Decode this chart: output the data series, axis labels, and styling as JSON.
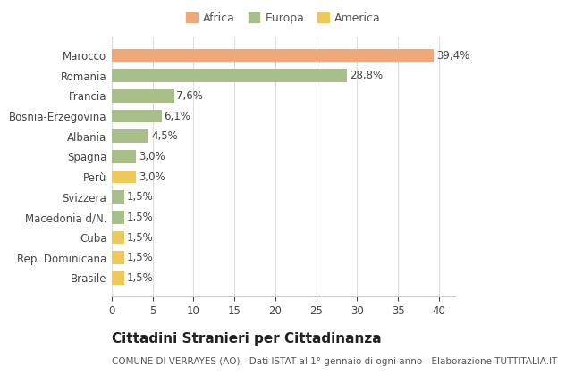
{
  "categories": [
    "Brasile",
    "Rep. Dominicana",
    "Cuba",
    "Macedonia d/N.",
    "Svizzera",
    "Perù",
    "Spagna",
    "Albania",
    "Bosnia-Erzegovina",
    "Francia",
    "Romania",
    "Marocco"
  ],
  "values": [
    1.5,
    1.5,
    1.5,
    1.5,
    1.5,
    3.0,
    3.0,
    4.5,
    6.1,
    7.6,
    28.8,
    39.4
  ],
  "labels": [
    "1,5%",
    "1,5%",
    "1,5%",
    "1,5%",
    "1,5%",
    "3,0%",
    "3,0%",
    "4,5%",
    "6,1%",
    "7,6%",
    "28,8%",
    "39,4%"
  ],
  "colors": [
    "#f0c858",
    "#f0c858",
    "#f0c858",
    "#a8bf8a",
    "#a8bf8a",
    "#f0c858",
    "#a8bf8a",
    "#a8bf8a",
    "#a8bf8a",
    "#a8bf8a",
    "#a8bf8a",
    "#f0a878"
  ],
  "legend_labels": [
    "Africa",
    "Europa",
    "America"
  ],
  "legend_colors": [
    "#f0a878",
    "#a8bf8a",
    "#f0c858"
  ],
  "title": "Cittadini Stranieri per Cittadinanza",
  "subtitle": "COMUNE DI VERRAYES (AO) - Dati ISTAT al 1° gennaio di ogni anno - Elaborazione TUTTITALIA.IT",
  "xlim": [
    0,
    42
  ],
  "xticks": [
    0,
    5,
    10,
    15,
    20,
    25,
    30,
    35,
    40
  ],
  "background_color": "#ffffff",
  "grid_color": "#dddddd",
  "bar_height": 0.65,
  "label_fontsize": 8.5,
  "tick_fontsize": 8.5,
  "title_fontsize": 11,
  "subtitle_fontsize": 7.5
}
